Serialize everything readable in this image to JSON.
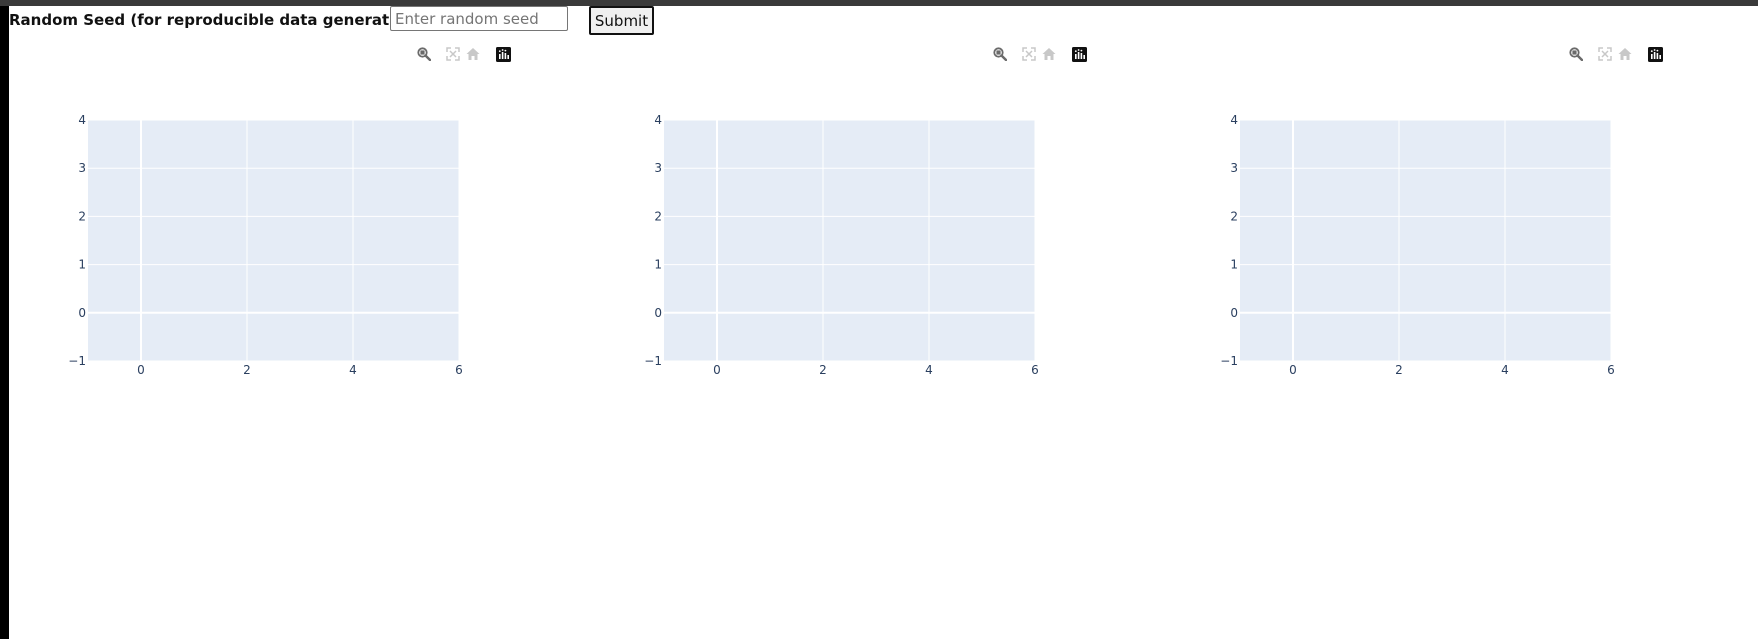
{
  "controls": {
    "seed_label": "Random Seed (for reproducible data generation):",
    "seed_input_value": "",
    "seed_input_placeholder": "Enter random seed",
    "submit_label": "Submit"
  },
  "modebar": {
    "buttons": [
      "zoom-icon",
      "autoscale-icon",
      "home-icon",
      "plotly-logo-icon"
    ]
  },
  "colors": {
    "plot_background": "#e5ecf6",
    "grid": "#ffffff",
    "tick_text": "#2a3f5f"
  },
  "chart_data": [
    {
      "type": "scatter",
      "x": [],
      "y": [],
      "xlim": [
        -1,
        6
      ],
      "ylim": [
        -1,
        4
      ],
      "xticks": [
        "0",
        "2",
        "4",
        "6"
      ],
      "yticks": [
        "−1",
        "0",
        "1",
        "2",
        "3",
        "4"
      ],
      "grid": true
    },
    {
      "type": "scatter",
      "x": [],
      "y": [],
      "xlim": [
        -1,
        6
      ],
      "ylim": [
        -1,
        4
      ],
      "xticks": [
        "0",
        "2",
        "4",
        "6"
      ],
      "yticks": [
        "−1",
        "0",
        "1",
        "2",
        "3",
        "4"
      ],
      "grid": true
    },
    {
      "type": "scatter",
      "x": [],
      "y": [],
      "xlim": [
        -1,
        6
      ],
      "ylim": [
        -1,
        4
      ],
      "xticks": [
        "0",
        "2",
        "4",
        "6"
      ],
      "yticks": [
        "−1",
        "0",
        "1",
        "2",
        "3",
        "4"
      ],
      "grid": true
    }
  ]
}
